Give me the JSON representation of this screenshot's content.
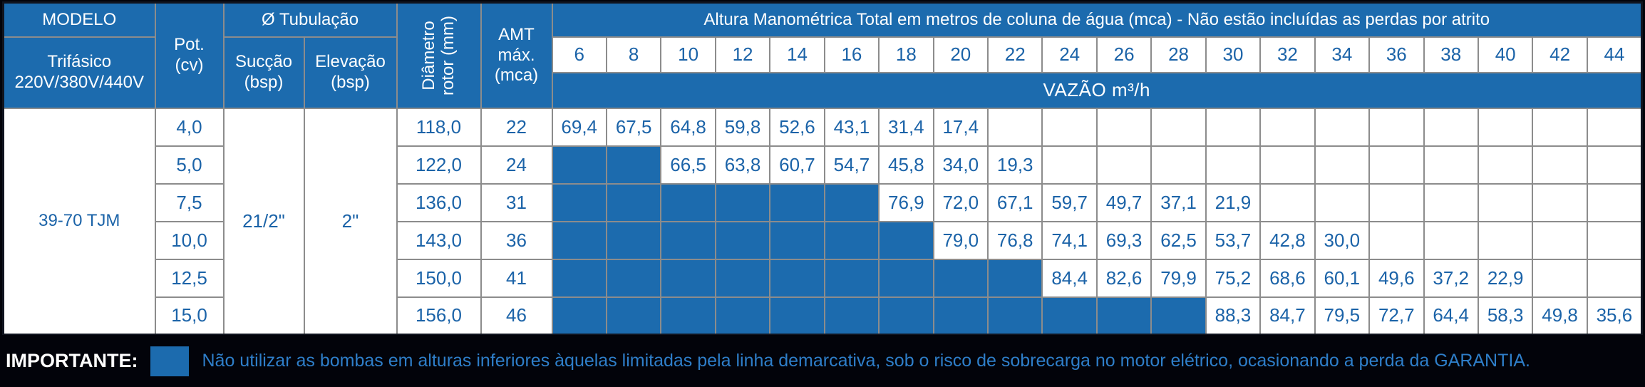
{
  "colors": {
    "table_blue": "#1C6BAE",
    "value_text": "#1B63A8",
    "border_gray": "#8C8C8C",
    "background": "#02030A",
    "footer_text": "#2E7EC9"
  },
  "header": {
    "modelo": "MODELO",
    "trifasico": "Trifásico\n220V/380V/440V",
    "pot": "Pot.\n(cv)",
    "tubulacao": "Ø Tubulação",
    "succao": "Sucção\n(bsp)",
    "elevacao": "Elevação\n(bsp)",
    "diametro": "Diâmetro\nrotor (mm)",
    "amt": "AMT\nmáx.\n(mca)",
    "altura": "Altura Manométrica Total em metros de coluna de água (mca) - Não estão incluídas as perdas por atrito",
    "vazao": "VAZÃO m³/h",
    "mca_columns": [
      "6",
      "8",
      "10",
      "12",
      "14",
      "16",
      "18",
      "20",
      "22",
      "24",
      "26",
      "28",
      "30",
      "32",
      "34",
      "36",
      "38",
      "40",
      "42",
      "44"
    ]
  },
  "table": {
    "model": "39-70 TJM",
    "succao_value": "21/2\"",
    "elevacao_value": "2\"",
    "rows": [
      {
        "pot": "4,0",
        "diametro": "118,0",
        "amt": "22",
        "blue_cells": 0,
        "values": [
          "69,4",
          "67,5",
          "64,8",
          "59,8",
          "52,6",
          "43,1",
          "31,4",
          "17,4"
        ]
      },
      {
        "pot": "5,0",
        "diametro": "122,0",
        "amt": "24",
        "blue_cells": 2,
        "values": [
          "66,5",
          "63,8",
          "60,7",
          "54,7",
          "45,8",
          "34,0",
          "19,3"
        ]
      },
      {
        "pot": "7,5",
        "diametro": "136,0",
        "amt": "31",
        "blue_cells": 6,
        "values": [
          "76,9",
          "72,0",
          "67,1",
          "59,7",
          "49,7",
          "37,1",
          "21,9"
        ]
      },
      {
        "pot": "10,0",
        "diametro": "143,0",
        "amt": "36",
        "blue_cells": 7,
        "values": [
          "79,0",
          "76,8",
          "74,1",
          "69,3",
          "62,5",
          "53,7",
          "42,8",
          "30,0"
        ]
      },
      {
        "pot": "12,5",
        "diametro": "150,0",
        "amt": "41",
        "blue_cells": 9,
        "values": [
          "84,4",
          "82,6",
          "79,9",
          "75,2",
          "68,6",
          "60,1",
          "49,6",
          "37,2",
          "22,9"
        ]
      },
      {
        "pot": "15,0",
        "diametro": "156,0",
        "amt": "46",
        "blue_cells": 12,
        "values": [
          "88,3",
          "84,7",
          "79,5",
          "72,7",
          "64,4",
          "58,3",
          "49,8",
          "35,6"
        ]
      }
    ]
  },
  "footer": {
    "label": "IMPORTANTE:",
    "note": "Não utilizar as bombas em alturas inferiores àquelas limitadas pela linha demarcativa, sob o risco de sobrecarga no motor elétrico, ocasionando a perda da GARANTIA."
  }
}
